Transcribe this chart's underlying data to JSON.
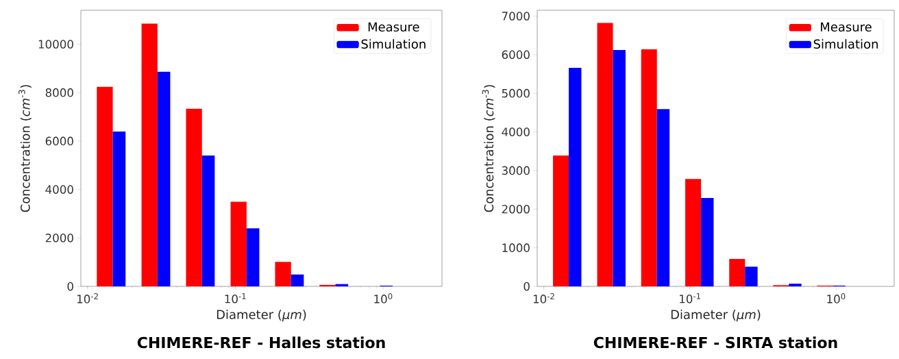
{
  "chart_data": [
    {
      "type": "bar",
      "title": "CHIMERE-REF - Halles station",
      "xlabel": "Diameter (*μm*)",
      "ylabel": "Concentration (*cm*$^{-3}$)",
      "x": [
        0.0148,
        0.0297,
        0.0594,
        0.119,
        0.238,
        0.475,
        0.95
      ],
      "series": [
        {
          "name": "Measure",
          "color": "#ff0000",
          "values": [
            8240,
            10850,
            7330,
            3490,
            1010,
            60,
            0
          ]
        },
        {
          "name": "Simulation",
          "color": "#0000ff",
          "values": [
            6390,
            8860,
            5400,
            2400,
            490,
            95,
            30
          ]
        }
      ],
      "log": "x",
      "xlim": [
        0.009,
        2.5
      ],
      "xticks": [
        {
          "value": 0.01,
          "label": "10$^{-2}$"
        },
        {
          "value": 0.1,
          "label": "10$^{-1}$"
        },
        {
          "value": 1,
          "label": "10$^{0}$"
        }
      ],
      "ylim": [
        0,
        11400
      ],
      "yticks": [
        0,
        2000,
        4000,
        6000,
        8000,
        10000
      ],
      "legend": "top right"
    },
    {
      "type": "bar",
      "title": "CHIMERE-REF - SIRTA station",
      "xlabel": "Diameter (*μm*)",
      "ylabel": "Concentration (*cm*$^{-3}$)",
      "x": [
        0.0148,
        0.0297,
        0.0594,
        0.119,
        0.238,
        0.475,
        0.95
      ],
      "series": [
        {
          "name": "Measure",
          "color": "#ff0000",
          "values": [
            3390,
            6820,
            6140,
            2780,
            710,
            30,
            20
          ]
        },
        {
          "name": "Simulation",
          "color": "#0000ff",
          "values": [
            5660,
            6120,
            4590,
            2290,
            510,
            70,
            20
          ]
        }
      ],
      "log": "x",
      "xlim": [
        0.009,
        2.5
      ],
      "xticks": [
        {
          "value": 0.01,
          "label": "10$^{-2}$"
        },
        {
          "value": 0.1,
          "label": "10$^{-1}$"
        },
        {
          "value": 1,
          "label": "10$^{0}$"
        }
      ],
      "ylim": [
        0,
        7150
      ],
      "yticks": [
        0,
        1000,
        2000,
        3000,
        4000,
        5000,
        6000,
        7000
      ],
      "legend": "top right"
    }
  ]
}
